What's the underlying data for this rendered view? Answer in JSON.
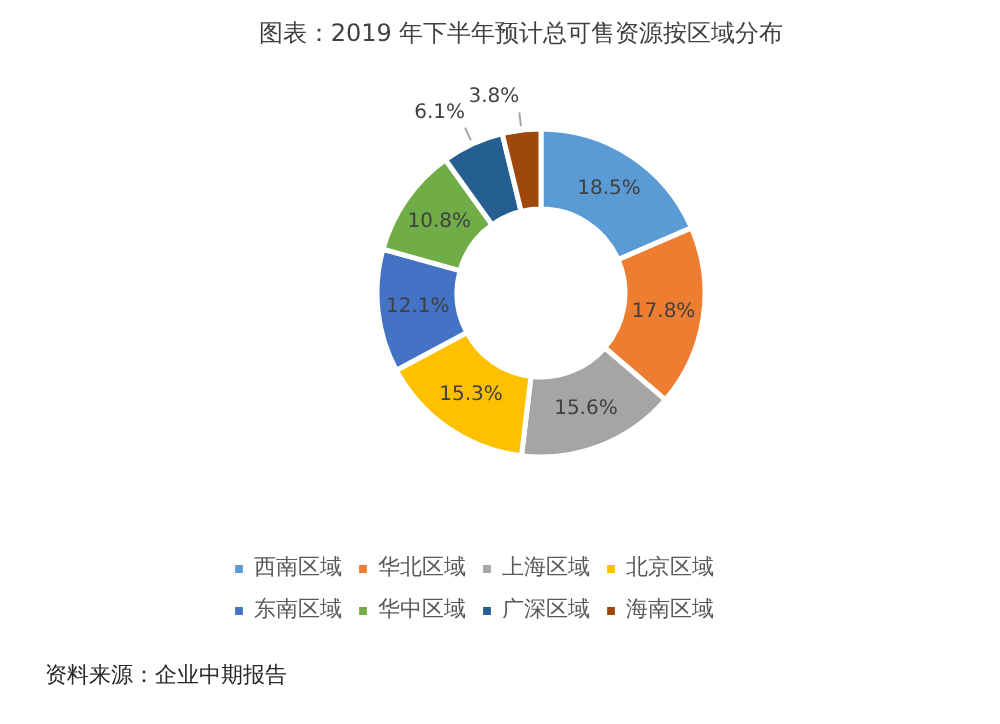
{
  "chart_data": {
    "type": "donut",
    "title": "图表：2019 年下半年预计总可售资源按区域分布",
    "categories": [
      "西南区域",
      "华北区域",
      "上海区域",
      "北京区域",
      "东南区域",
      "华中区域",
      "广深区域",
      "海南区域"
    ],
    "values": [
      18.5,
      17.8,
      15.6,
      15.3,
      12.1,
      10.8,
      6.1,
      3.8
    ],
    "colors": [
      "#5b9bd5",
      "#ed7d31",
      "#a5a5a5",
      "#ffc000",
      "#4472c4",
      "#70ad47",
      "#255e91",
      "#9e480e"
    ],
    "value_labels": [
      "18.5%",
      "17.8%",
      "15.6%",
      "15.3%",
      "12.1%",
      "10.8%",
      "6.1%",
      "3.8%"
    ],
    "legend": "bottom",
    "annotations": [
      "资料来源：企业中期报告"
    ]
  }
}
